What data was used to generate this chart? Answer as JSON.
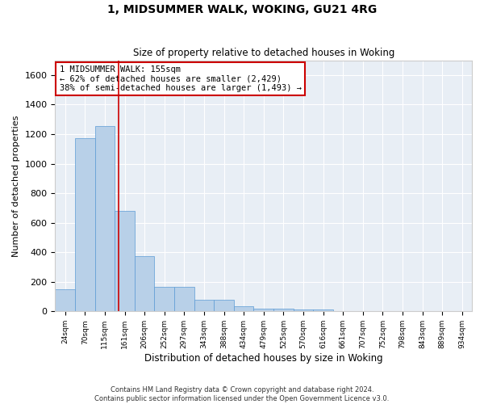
{
  "title": "1, MIDSUMMER WALK, WOKING, GU21 4RG",
  "subtitle": "Size of property relative to detached houses in Woking",
  "xlabel": "Distribution of detached houses by size in Woking",
  "ylabel": "Number of detached properties",
  "bar_color": "#b8d0e8",
  "bar_edge_color": "#5b9bd5",
  "background_color": "#e8eef5",
  "grid_color": "#ffffff",
  "categories": [
    "24sqm",
    "70sqm",
    "115sqm",
    "161sqm",
    "206sqm",
    "252sqm",
    "297sqm",
    "343sqm",
    "388sqm",
    "434sqm",
    "479sqm",
    "525sqm",
    "570sqm",
    "616sqm",
    "661sqm",
    "707sqm",
    "752sqm",
    "798sqm",
    "843sqm",
    "889sqm",
    "934sqm"
  ],
  "values": [
    150,
    1175,
    1255,
    680,
    375,
    165,
    165,
    80,
    80,
    35,
    20,
    20,
    12,
    12,
    0,
    0,
    0,
    0,
    0,
    0,
    0
  ],
  "ylim": [
    0,
    1700
  ],
  "yticks": [
    0,
    200,
    400,
    600,
    800,
    1000,
    1200,
    1400,
    1600
  ],
  "property_line_x": 2.7,
  "annotation_text": "1 MIDSUMMER WALK: 155sqm\n← 62% of detached houses are smaller (2,429)\n38% of semi-detached houses are larger (1,493) →",
  "annotation_box_color": "#cc0000",
  "footer": "Contains HM Land Registry data © Crown copyright and database right 2024.\nContains public sector information licensed under the Open Government Licence v3.0."
}
